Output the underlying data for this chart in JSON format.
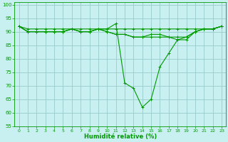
{
  "xlabel": "Humidité relative (%)",
  "background_color": "#c8f0f0",
  "grid_color": "#99cccc",
  "line_color": "#009900",
  "xlim": [
    -0.5,
    23.5
  ],
  "ylim": [
    55,
    101
  ],
  "yticks": [
    55,
    60,
    65,
    70,
    75,
    80,
    85,
    90,
    95,
    100
  ],
  "xticks": [
    0,
    1,
    2,
    3,
    4,
    5,
    6,
    7,
    8,
    9,
    10,
    11,
    12,
    13,
    14,
    15,
    16,
    17,
    18,
    19,
    20,
    21,
    22,
    23
  ],
  "series": [
    [
      92,
      90,
      90,
      90,
      90,
      90,
      91,
      90,
      90,
      91,
      91,
      93,
      71,
      69,
      62,
      65,
      77,
      82,
      87,
      87,
      90,
      91,
      91,
      92
    ],
    [
      92,
      90,
      90,
      90,
      90,
      90,
      91,
      90,
      90,
      91,
      90,
      89,
      89,
      88,
      88,
      88,
      88,
      88,
      88,
      88,
      90,
      91,
      91,
      92
    ],
    [
      92,
      90,
      90,
      90,
      90,
      90,
      91,
      90,
      90,
      91,
      90,
      89,
      89,
      88,
      88,
      89,
      89,
      88,
      87,
      88,
      90,
      91,
      91,
      92
    ],
    [
      92,
      91,
      91,
      91,
      91,
      91,
      91,
      91,
      91,
      91,
      91,
      91,
      91,
      91,
      91,
      91,
      91,
      91,
      91,
      91,
      91,
      91,
      91,
      92
    ]
  ]
}
